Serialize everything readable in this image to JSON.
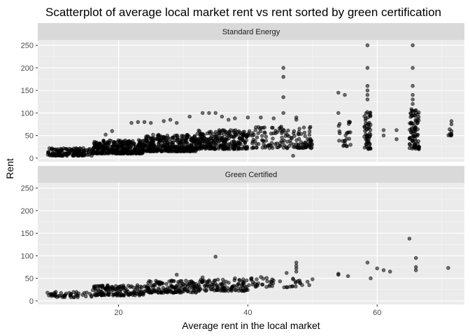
{
  "chart_data": {
    "type": "scatter",
    "title": "Scatterplot of average local market rent vs rent sorted by green certification",
    "xlabel": "Average rent in the local market",
    "ylabel": "Rent",
    "xlim": [
      7.5,
      73.5
    ],
    "ylim": [
      -8,
      262
    ],
    "x_ticks": [
      20,
      40,
      60
    ],
    "y_ticks": [
      0,
      50,
      100,
      150,
      200,
      250
    ],
    "grid": true,
    "point_color": "#000000",
    "point_alpha": 0.55,
    "panels": [
      {
        "strip_label": "Standard Energy",
        "clusters": [
          {
            "x_min": 9,
            "x_max": 16,
            "y_min": 5,
            "y_max": 22,
            "count": 160
          },
          {
            "x_min": 16,
            "x_max": 24,
            "y_min": 10,
            "y_max": 40,
            "count": 340
          },
          {
            "x_min": 24,
            "x_max": 32,
            "y_min": 15,
            "y_max": 52,
            "count": 340
          },
          {
            "x_min": 32,
            "x_max": 40,
            "y_min": 20,
            "y_max": 62,
            "count": 260
          },
          {
            "x_min": 40,
            "x_max": 50,
            "y_min": 22,
            "y_max": 70,
            "count": 150
          },
          {
            "x_min": 54,
            "x_max": 56,
            "y_min": 25,
            "y_max": 90,
            "count": 25
          },
          {
            "x_min": 58,
            "x_max": 59,
            "y_min": 20,
            "y_max": 105,
            "count": 55
          },
          {
            "x_min": 65,
            "x_max": 66.5,
            "y_min": 20,
            "y_max": 110,
            "count": 90
          },
          {
            "x_min": 71,
            "x_max": 71.5,
            "y_min": 50,
            "y_max": 80,
            "count": 6
          }
        ],
        "points": [
          {
            "x": 18,
            "y": 52
          },
          {
            "x": 19,
            "y": 60
          },
          {
            "x": 22,
            "y": 78
          },
          {
            "x": 23,
            "y": 80
          },
          {
            "x": 24,
            "y": 80
          },
          {
            "x": 25,
            "y": 78
          },
          {
            "x": 27,
            "y": 82
          },
          {
            "x": 28,
            "y": 85
          },
          {
            "x": 29,
            "y": 78
          },
          {
            "x": 31,
            "y": 92
          },
          {
            "x": 33,
            "y": 100
          },
          {
            "x": 34,
            "y": 100
          },
          {
            "x": 35,
            "y": 100
          },
          {
            "x": 36,
            "y": 92
          },
          {
            "x": 37,
            "y": 85
          },
          {
            "x": 38,
            "y": 88
          },
          {
            "x": 40,
            "y": 90
          },
          {
            "x": 42,
            "y": 90
          },
          {
            "x": 44,
            "y": 88
          },
          {
            "x": 45.5,
            "y": 200
          },
          {
            "x": 45.5,
            "y": 180
          },
          {
            "x": 45.5,
            "y": 135
          },
          {
            "x": 45.5,
            "y": 100
          },
          {
            "x": 47.5,
            "y": 90
          },
          {
            "x": 47.5,
            "y": 85
          },
          {
            "x": 47,
            "y": 5
          },
          {
            "x": 54,
            "y": 145
          },
          {
            "x": 55,
            "y": 140
          },
          {
            "x": 54,
            "y": 100
          },
          {
            "x": 58.5,
            "y": 250
          },
          {
            "x": 58.5,
            "y": 200
          },
          {
            "x": 58.5,
            "y": 160
          },
          {
            "x": 58.5,
            "y": 150
          },
          {
            "x": 58.5,
            "y": 140
          },
          {
            "x": 58.5,
            "y": 130
          },
          {
            "x": 61,
            "y": 62
          },
          {
            "x": 61,
            "y": 50
          },
          {
            "x": 63,
            "y": 62
          },
          {
            "x": 63,
            "y": 42
          },
          {
            "x": 65.5,
            "y": 250
          },
          {
            "x": 65.5,
            "y": 200
          },
          {
            "x": 65.5,
            "y": 160
          },
          {
            "x": 65.5,
            "y": 140
          },
          {
            "x": 65.5,
            "y": 130
          },
          {
            "x": 65.5,
            "y": 120
          },
          {
            "x": 71.5,
            "y": 82
          },
          {
            "x": 71.5,
            "y": 75
          },
          {
            "x": 71.5,
            "y": 60
          },
          {
            "x": 71.5,
            "y": 52
          }
        ]
      },
      {
        "strip_label": "Green Certified",
        "clusters": [
          {
            "x_min": 9,
            "x_max": 16,
            "y_min": 8,
            "y_max": 20,
            "count": 45
          },
          {
            "x_min": 16,
            "x_max": 24,
            "y_min": 12,
            "y_max": 35,
            "count": 140
          },
          {
            "x_min": 24,
            "x_max": 32,
            "y_min": 18,
            "y_max": 45,
            "count": 150
          },
          {
            "x_min": 32,
            "x_max": 40,
            "y_min": 22,
            "y_max": 48,
            "count": 110
          },
          {
            "x_min": 40,
            "x_max": 50,
            "y_min": 30,
            "y_max": 55,
            "count": 45
          }
        ],
        "points": [
          {
            "x": 9,
            "y": 18
          },
          {
            "x": 10,
            "y": 12
          },
          {
            "x": 35,
            "y": 98
          },
          {
            "x": 29,
            "y": 58
          },
          {
            "x": 33,
            "y": 52
          },
          {
            "x": 38,
            "y": 50
          },
          {
            "x": 46,
            "y": 62
          },
          {
            "x": 47.5,
            "y": 85
          },
          {
            "x": 47.5,
            "y": 78
          },
          {
            "x": 47.5,
            "y": 72
          },
          {
            "x": 47.5,
            "y": 65
          },
          {
            "x": 47,
            "y": 48
          },
          {
            "x": 48,
            "y": 45
          },
          {
            "x": 50,
            "y": 48
          },
          {
            "x": 54,
            "y": 60
          },
          {
            "x": 54,
            "y": 58
          },
          {
            "x": 55.5,
            "y": 55
          },
          {
            "x": 58.5,
            "y": 85
          },
          {
            "x": 59,
            "y": 50
          },
          {
            "x": 60,
            "y": 72
          },
          {
            "x": 61,
            "y": 68
          },
          {
            "x": 62,
            "y": 65
          },
          {
            "x": 65,
            "y": 138
          },
          {
            "x": 66,
            "y": 95
          },
          {
            "x": 66,
            "y": 75
          },
          {
            "x": 66,
            "y": 68
          },
          {
            "x": 71,
            "y": 73
          }
        ]
      }
    ]
  }
}
